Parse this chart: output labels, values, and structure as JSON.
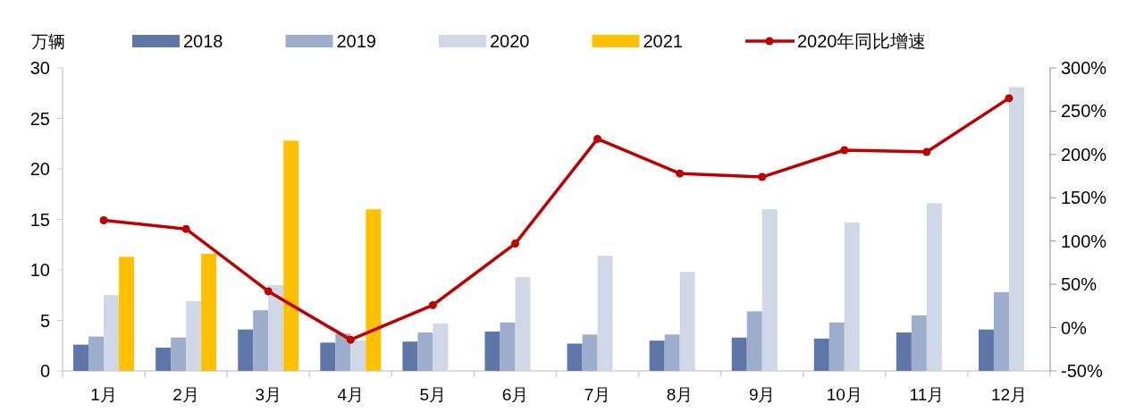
{
  "chart_data": {
    "type": "bar",
    "ylabel": "万辆",
    "categories": [
      "1月",
      "2月",
      "3月",
      "4月",
      "5月",
      "6月",
      "7月",
      "8月",
      "9月",
      "10月",
      "11月",
      "12月"
    ],
    "series": [
      {
        "name": "2018",
        "color": "#5f77a8",
        "values": [
          2.6,
          2.3,
          4.1,
          2.8,
          2.9,
          3.9,
          2.7,
          3.0,
          3.3,
          3.2,
          3.8,
          4.1
        ]
      },
      {
        "name": "2019",
        "color": "#9dadcc",
        "values": [
          3.4,
          3.3,
          6.0,
          3.7,
          3.8,
          4.8,
          3.6,
          3.6,
          5.9,
          4.8,
          5.5,
          7.8
        ]
      },
      {
        "name": "2020",
        "color": "#d0d7e6",
        "values": [
          7.5,
          6.9,
          8.5,
          3.0,
          4.7,
          9.3,
          11.4,
          9.8,
          16.0,
          14.7,
          16.6,
          28.1
        ]
      },
      {
        "name": "2021",
        "color": "#ffc000",
        "values": [
          11.3,
          11.6,
          22.8,
          16.0,
          null,
          null,
          null,
          null,
          null,
          null,
          null,
          null
        ]
      },
      {
        "name": "2020年同比增速",
        "type": "line",
        "axis": "y2",
        "color": "#c00000",
        "marker": "circle",
        "values": [
          124,
          114,
          42,
          -14,
          26,
          97,
          218,
          178,
          174,
          205,
          203,
          265
        ]
      }
    ],
    "ylim": [
      0,
      30
    ],
    "yticks": [
      0,
      5,
      10,
      15,
      20,
      25,
      30
    ],
    "y2lim": [
      -50,
      300
    ],
    "y2ticks": [
      {
        "value": -50,
        "label": "-50%"
      },
      {
        "value": 0,
        "label": "0%"
      },
      {
        "value": 50,
        "label": "50%"
      },
      {
        "value": 100,
        "label": "100%"
      },
      {
        "value": 150,
        "label": "150%"
      },
      {
        "value": 200,
        "label": "200%"
      },
      {
        "value": 250,
        "label": "250%"
      },
      {
        "value": 300,
        "label": "300%"
      }
    ],
    "grid": false,
    "legend": "top"
  }
}
